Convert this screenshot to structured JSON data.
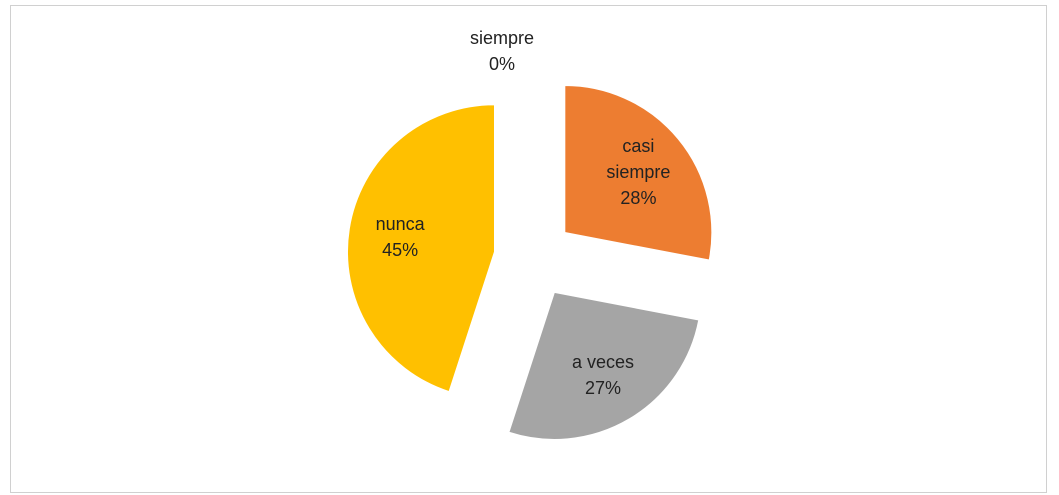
{
  "chart_data": {
    "type": "pie",
    "categories": [
      "siempre",
      "casi siempre",
      "a veces",
      "nunca"
    ],
    "values": [
      0,
      28,
      27,
      45
    ],
    "value_labels": [
      "0%",
      "28%",
      "27%",
      "45%"
    ],
    "colors": [
      "#4472c4",
      "#ed7d31",
      "#a5a5a5",
      "#ffc000"
    ]
  }
}
